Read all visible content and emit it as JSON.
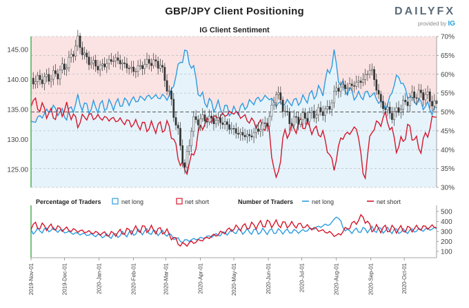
{
  "header": {
    "title": "GBP/JPY Client Positioning",
    "subtitle": "IG Client Sentiment",
    "logo_word": "DAILYFX",
    "logo_sub": "provided by",
    "logo_brand": "IG"
  },
  "colors": {
    "net_long": "#2b9be0",
    "net_short": "#d4152a",
    "candle": "#333333",
    "long_fill": "#e6f3fb",
    "short_fill": "#fbe3e3"
  },
  "chart_data": [
    {
      "type": "line",
      "title": "IG Client Sentiment",
      "left_axis": {
        "ticks": [
          "145.00",
          "140.00",
          "135.00",
          "130.00",
          "125.00"
        ],
        "range": [
          122,
          147.2
        ]
      },
      "right_axis": {
        "ticks": [
          "70%",
          "65%",
          "60%",
          "55%",
          "50%",
          "45%",
          "40%",
          "35%",
          "30%"
        ],
        "range": [
          30,
          70
        ]
      },
      "price_series": {
        "name": "GBP/JPY",
        "type": "candlestick",
        "keypoints": [
          [
            "2019-11-01",
            139.8
          ],
          [
            "2019-11-15",
            140.2
          ],
          [
            "2019-11-25",
            141.0
          ],
          [
            "2019-12-05",
            143.0
          ],
          [
            "2019-12-13",
            146.5
          ],
          [
            "2019-12-20",
            143.5
          ],
          [
            "2020-01-01",
            142.0
          ],
          [
            "2020-01-15",
            143.5
          ],
          [
            "2020-02-01",
            141.5
          ],
          [
            "2020-02-15",
            143.0
          ],
          [
            "2020-02-25",
            142.5
          ],
          [
            "2020-03-05",
            137.0
          ],
          [
            "2020-03-12",
            131.0
          ],
          [
            "2020-03-18",
            125.0
          ],
          [
            "2020-03-25",
            133.0
          ],
          [
            "2020-04-05",
            133.5
          ],
          [
            "2020-04-20",
            133.0
          ],
          [
            "2020-05-05",
            131.0
          ],
          [
            "2020-05-15",
            130.5
          ],
          [
            "2020-06-01",
            133.0
          ],
          [
            "2020-06-08",
            138.0
          ],
          [
            "2020-06-20",
            133.0
          ],
          [
            "2020-07-01",
            133.5
          ],
          [
            "2020-07-15",
            134.5
          ],
          [
            "2020-07-25",
            135.0
          ],
          [
            "2020-08-01",
            138.5
          ],
          [
            "2020-08-15",
            139.0
          ],
          [
            "2020-08-25",
            140.0
          ],
          [
            "2020-09-01",
            142.0
          ],
          [
            "2020-09-10",
            136.0
          ],
          [
            "2020-09-20",
            134.0
          ],
          [
            "2020-10-01",
            136.0
          ],
          [
            "2020-10-10",
            137.5
          ],
          [
            "2020-10-20",
            137.5
          ],
          [
            "2020-10-30",
            135.5
          ]
        ]
      },
      "series": [
        {
          "name": "net long",
          "keypoints": [
            [
              "2019-11-01",
              47
            ],
            [
              "2019-11-20",
              51
            ],
            [
              "2019-12-03",
              49
            ],
            [
              "2019-12-13",
              53
            ],
            [
              "2019-12-20",
              51
            ],
            [
              "2020-01-15",
              52
            ],
            [
              "2020-02-15",
              54
            ],
            [
              "2020-03-05",
              54
            ],
            [
              "2020-03-10",
              60
            ],
            [
              "2020-03-18",
              66
            ],
            [
              "2020-03-25",
              62
            ],
            [
              "2020-04-01",
              54
            ],
            [
              "2020-04-10",
              52
            ],
            [
              "2020-05-01",
              50
            ],
            [
              "2020-05-20",
              53
            ],
            [
              "2020-06-01",
              54
            ],
            [
              "2020-06-08",
              52
            ],
            [
              "2020-07-01",
              53
            ],
            [
              "2020-07-20",
              56
            ],
            [
              "2020-07-30",
              65
            ],
            [
              "2020-08-05",
              57
            ],
            [
              "2020-08-20",
              54
            ],
            [
              "2020-09-01",
              55
            ],
            [
              "2020-09-15",
              51
            ],
            [
              "2020-09-25",
              60
            ],
            [
              "2020-10-05",
              54
            ],
            [
              "2020-10-30",
              50
            ]
          ]
        },
        {
          "name": "net short",
          "keypoints": [
            [
              "2019-11-01",
              53
            ],
            [
              "2019-11-20",
              49
            ],
            [
              "2019-12-03",
              51
            ],
            [
              "2019-12-13",
              47
            ],
            [
              "2019-12-20",
              49
            ],
            [
              "2020-01-15",
              48
            ],
            [
              "2020-02-15",
              46
            ],
            [
              "2020-03-05",
              46
            ],
            [
              "2020-03-10",
              40
            ],
            [
              "2020-03-18",
              34
            ],
            [
              "2020-03-25",
              38
            ],
            [
              "2020-04-01",
              46
            ],
            [
              "2020-04-10",
              48
            ],
            [
              "2020-05-01",
              50
            ],
            [
              "2020-05-20",
              47
            ],
            [
              "2020-06-01",
              46
            ],
            [
              "2020-06-08",
              31
            ],
            [
              "2020-06-15",
              44
            ],
            [
              "2020-07-01",
              47
            ],
            [
              "2020-07-20",
              44
            ],
            [
              "2020-07-30",
              35
            ],
            [
              "2020-08-05",
              43
            ],
            [
              "2020-08-20",
              46
            ],
            [
              "2020-08-26",
              31
            ],
            [
              "2020-09-01",
              45
            ],
            [
              "2020-09-15",
              49
            ],
            [
              "2020-09-25",
              40
            ],
            [
              "2020-10-05",
              46
            ],
            [
              "2020-10-15",
              40
            ],
            [
              "2020-10-30",
              50
            ]
          ]
        }
      ]
    },
    {
      "type": "line",
      "legend": {
        "percentage_label": "Percentage of Traders",
        "number_label": "Number of Traders",
        "net_long": "net long",
        "net_short": "net short"
      },
      "right_axis": {
        "ticks": [
          "500",
          "400",
          "300",
          "200",
          "100"
        ],
        "range": [
          50,
          520
        ]
      },
      "x_ticks": [
        "2019-Nov-01",
        "2019-Dec-01",
        "2020-Jan-01",
        "2020-Feb-01",
        "2020-Mar-01",
        "2020-Apr-01",
        "2020-May-01",
        "2020-Jun-01",
        "2020-Jul-01",
        "2020-Aug-01",
        "2020-Sep-01",
        "2020-Oct-01"
      ],
      "series": [
        {
          "name": "net long",
          "keypoints": [
            [
              "2019-11-01",
              300
            ],
            [
              "2019-11-20",
              320
            ],
            [
              "2019-12-10",
              280
            ],
            [
              "2020-01-10",
              250
            ],
            [
              "2020-02-10",
              300
            ],
            [
              "2020-03-01",
              280
            ],
            [
              "2020-03-15",
              200
            ],
            [
              "2020-04-01",
              230
            ],
            [
              "2020-05-01",
              300
            ],
            [
              "2020-06-01",
              300
            ],
            [
              "2020-07-01",
              300
            ],
            [
              "2020-07-28",
              380
            ],
            [
              "2020-08-01",
              460
            ],
            [
              "2020-08-10",
              300
            ],
            [
              "2020-09-01",
              320
            ],
            [
              "2020-10-01",
              300
            ],
            [
              "2020-10-30",
              330
            ]
          ]
        },
        {
          "name": "net short",
          "keypoints": [
            [
              "2019-11-01",
              360
            ],
            [
              "2019-11-20",
              340
            ],
            [
              "2019-12-10",
              310
            ],
            [
              "2020-01-10",
              270
            ],
            [
              "2020-02-10",
              330
            ],
            [
              "2020-03-01",
              300
            ],
            [
              "2020-03-15",
              160
            ],
            [
              "2020-04-01",
              210
            ],
            [
              "2020-05-01",
              330
            ],
            [
              "2020-06-01",
              380
            ],
            [
              "2020-07-01",
              360
            ],
            [
              "2020-07-28",
              280
            ],
            [
              "2020-08-01",
              250
            ],
            [
              "2020-08-25",
              450
            ],
            [
              "2020-09-01",
              330
            ],
            [
              "2020-10-01",
              320
            ],
            [
              "2020-10-30",
              350
            ]
          ]
        }
      ]
    }
  ]
}
